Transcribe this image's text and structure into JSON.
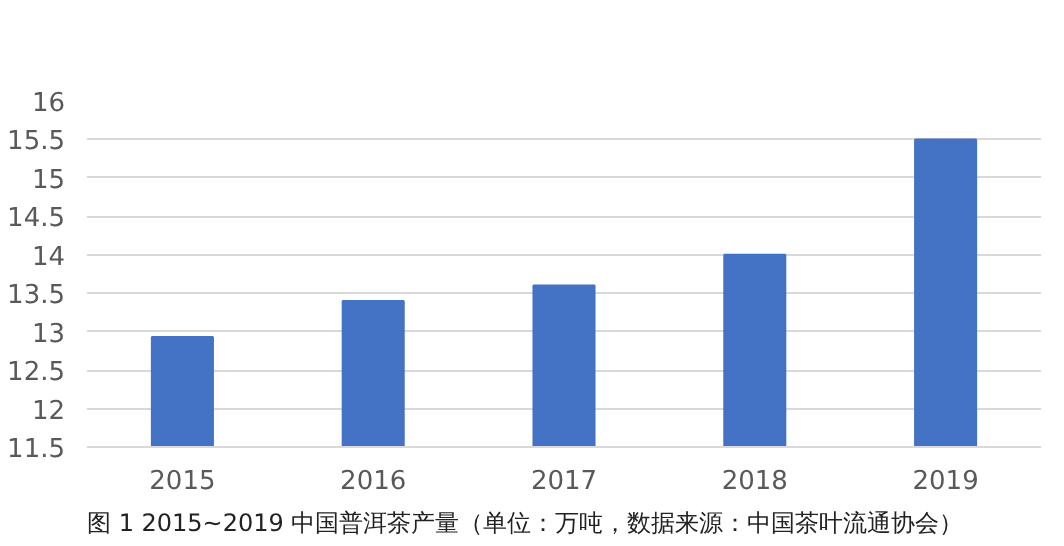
{
  "chart_data": {
    "type": "bar",
    "title": "图 1 2015~2019 中国普洱茶产量（单位：万吨，数据来源：中国茶叶流通协会）",
    "categories": [
      "2015",
      "2016",
      "2017",
      "2018",
      "2019"
    ],
    "values": [
      12.93,
      13.4,
      13.6,
      14.0,
      15.5
    ],
    "color": "#4472c4",
    "ylim": [
      11.5,
      16
    ],
    "yticks": [
      11.5,
      12,
      12.5,
      13,
      13.5,
      14,
      14.5,
      15,
      15.5,
      16
    ],
    "grid": "y"
  }
}
